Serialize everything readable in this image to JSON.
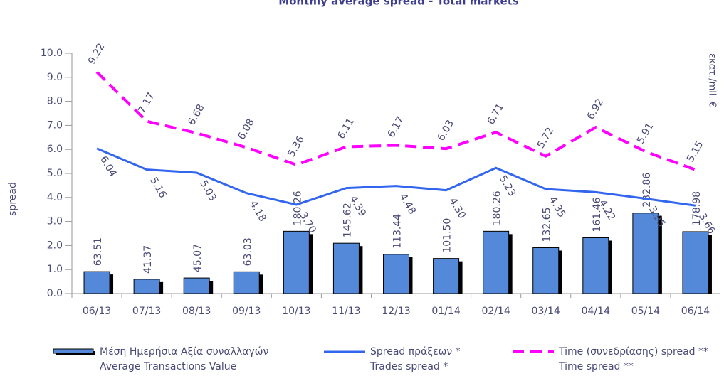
{
  "chart_data": {
    "type": "bar_line",
    "title": "Monthly average spread - Total markets",
    "ylabel": "spread",
    "y2label": "εκατ./mil. €",
    "categories": [
      "06/13",
      "07/13",
      "08/13",
      "09/13",
      "10/13",
      "11/13",
      "12/13",
      "01/14",
      "02/14",
      "03/14",
      "04/14",
      "05/14",
      "06/14"
    ],
    "ylim": [
      0,
      10
    ],
    "yticks": [
      {
        "value": 0,
        "label": "0.0"
      },
      {
        "value": 1,
        "label": "1.0"
      },
      {
        "value": 2,
        "label": "2.0"
      },
      {
        "value": 3,
        "label": "3.0"
      },
      {
        "value": 4,
        "label": "4.0"
      },
      {
        "value": 5,
        "label": "5.0"
      },
      {
        "value": 6,
        "label": "6.0"
      },
      {
        "value": 7,
        "label": "7.0"
      },
      {
        "value": 8,
        "label": "8.0"
      },
      {
        "value": 9,
        "label": "9.0"
      },
      {
        "value": 10,
        "label": "10.0"
      }
    ],
    "y2lim": [
      0,
      695
    ],
    "series": [
      {
        "name": "Μέση Ημερήσια Αξία συναλλαγών",
        "name_en": "Average Transactions Value",
        "type": "bar",
        "axis": "y2",
        "color": "#5389d8",
        "values": [
          63.51,
          41.37,
          45.07,
          63.03,
          180.26,
          145.62,
          113.44,
          101.5,
          180.26,
          132.65,
          161.46,
          232.86,
          178.98
        ],
        "value_labels": [
          "63.51",
          "41.37",
          "45.07",
          "63.03",
          "180.26",
          "145.62",
          "113.44",
          "101.50",
          "180.26",
          "132.65",
          "161.46",
          "232.86",
          "178.98"
        ]
      },
      {
        "name": "Spread πράξεων *",
        "name_en": "Trades spread *",
        "type": "line",
        "color": "#3366ee",
        "values": [
          6.04,
          5.16,
          5.03,
          4.18,
          3.7,
          4.39,
          4.48,
          4.3,
          5.23,
          4.35,
          4.22,
          3.95,
          3.66
        ],
        "value_labels": [
          "6.04",
          "5.16",
          "5.03",
          "4.18",
          "3.70",
          "4.39",
          "4.48",
          "4.30",
          "5.23",
          "4.35",
          "4.22",
          "3.95",
          "3.66"
        ]
      },
      {
        "name": "Time  (συνεδρίασης) spread **",
        "name_en": "Time spread **",
        "type": "line",
        "dashed": true,
        "color": "#ff00ff",
        "values": [
          9.22,
          7.17,
          6.68,
          6.08,
          5.36,
          6.11,
          6.17,
          6.03,
          6.71,
          5.72,
          6.92,
          5.91,
          5.15
        ]
      }
    ]
  }
}
